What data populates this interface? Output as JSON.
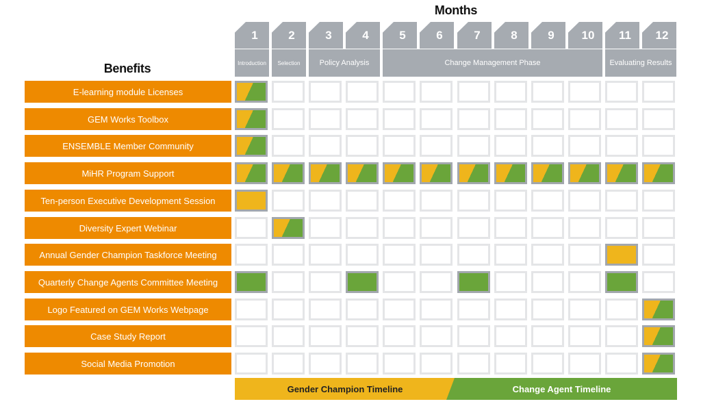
{
  "months_title": "Months",
  "benefits_title": "Benefits",
  "months": [
    "1",
    "2",
    "3",
    "4",
    "5",
    "6",
    "7",
    "8",
    "9",
    "10",
    "11",
    "12"
  ],
  "phases": [
    {
      "label": "Introduction",
      "start": 1,
      "end": 1
    },
    {
      "label": "Selection",
      "start": 2,
      "end": 2
    },
    {
      "label": "Policy Analysis",
      "start": 3,
      "end": 4
    },
    {
      "label": "Change Management Phase",
      "start": 5,
      "end": 10
    },
    {
      "label": "Evaluating Results",
      "start": 11,
      "end": 12
    }
  ],
  "benefits": [
    {
      "label": "E-learning module Licenses",
      "cells": {
        "1": "both"
      }
    },
    {
      "label": "GEM Works Toolbox",
      "cells": {
        "1": "both"
      }
    },
    {
      "label": "ENSEMBLE Member Community",
      "cells": {
        "1": "both"
      }
    },
    {
      "label": "MiHR Program Support",
      "cells": {
        "1": "both",
        "2": "both",
        "3": "both",
        "4": "both",
        "5": "both",
        "6": "both",
        "7": "both",
        "8": "both",
        "9": "both",
        "10": "both",
        "11": "both",
        "12": "both"
      }
    },
    {
      "label": "Ten-person Executive Development Session",
      "cells": {
        "1": "yellow"
      }
    },
    {
      "label": "Diversity Expert Webinar",
      "cells": {
        "2": "both"
      }
    },
    {
      "label": "Annual Gender Champion Taskforce Meeting",
      "cells": {
        "11": "yellow"
      }
    },
    {
      "label": "Quarterly Change Agents Committee Meeting",
      "cells": {
        "1": "green",
        "4": "green",
        "7": "green",
        "11": "green"
      }
    },
    {
      "label": "Logo Featured on GEM Works Webpage",
      "cells": {
        "12": "both"
      }
    },
    {
      "label": "Case Study Report",
      "cells": {
        "12": "both"
      }
    },
    {
      "label": "Social Media Promotion",
      "cells": {
        "12": "both"
      }
    }
  ],
  "timelines": {
    "gender_champion": "Gender Champion Timeline",
    "change_agent": "Change Agent Timeline"
  },
  "colors": {
    "benefit_bg": "#ee8a00",
    "header_gray": "#a6abb1",
    "gender_champion_yellow": "#efb51c",
    "change_agent_green": "#6aa53a"
  }
}
